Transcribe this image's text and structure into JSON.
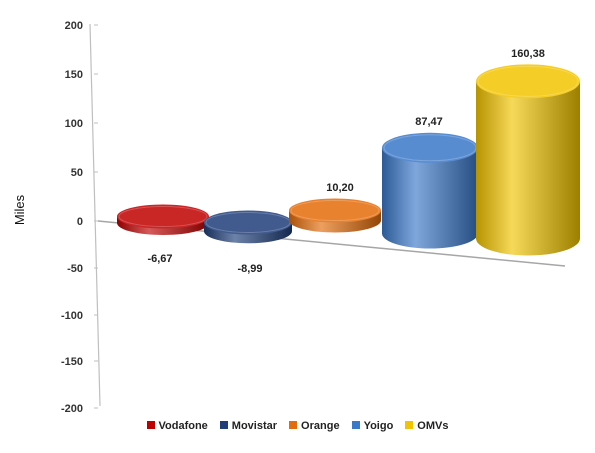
{
  "chart_data": {
    "type": "bar",
    "categories": [
      "Vodafone",
      "Movistar",
      "Orange",
      "Yoigo",
      "OMVs"
    ],
    "values": [
      -6.67,
      -8.99,
      10.2,
      87.47,
      160.38
    ],
    "data_labels": [
      "-6,67",
      "-8,99",
      "10,20",
      "87,47",
      "160,38"
    ],
    "colors": [
      "#c00000",
      "#1f3e7a",
      "#e46c0a",
      "#3a78c9",
      "#f2c400"
    ],
    "ylabel": "Miles",
    "ylim": [
      -200,
      200
    ],
    "yticks": [
      200,
      150,
      100,
      50,
      0,
      -50,
      -100,
      -150,
      -200
    ],
    "legend": {
      "position": "bottom",
      "items": [
        "Vodafone",
        "Movistar",
        "Orange",
        "Yoigo",
        "OMVs"
      ]
    },
    "grid": false
  }
}
